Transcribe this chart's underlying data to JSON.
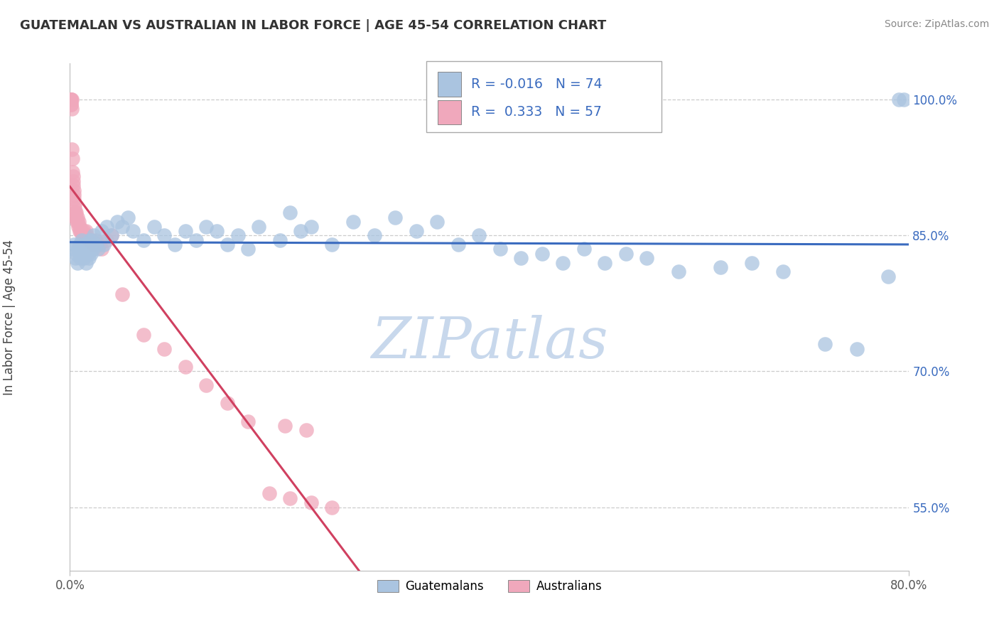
{
  "title": "GUATEMALAN VS AUSTRALIAN IN LABOR FORCE | AGE 45-54 CORRELATION CHART",
  "source": "Source: ZipAtlas.com",
  "ylabel": "In Labor Force | Age 45-54",
  "xlim": [
    0.0,
    80.0
  ],
  "ylim": [
    48.0,
    104.0
  ],
  "x_ticks": [
    0.0,
    80.0
  ],
  "x_tick_labels": [
    "0.0%",
    "80.0%"
  ],
  "y_tick_values": [
    55.0,
    70.0,
    85.0,
    100.0
  ],
  "y_tick_labels": [
    "55.0%",
    "70.0%",
    "85.0%",
    "100.0%"
  ],
  "blue_color": "#aac4e0",
  "pink_color": "#f0a8bc",
  "blue_line_color": "#3a6bbf",
  "pink_line_color": "#d04060",
  "watermark_color": "#c8d8ec",
  "background_color": "#ffffff",
  "grid_color": "#cccccc",
  "r_blue": "-0.016",
  "r_pink": "0.333",
  "n_blue": "74",
  "n_pink": "57",
  "guatemalan_x": [
    0.3,
    0.4,
    0.5,
    0.6,
    0.7,
    0.8,
    0.9,
    1.0,
    1.0,
    1.1,
    1.2,
    1.3,
    1.4,
    1.5,
    1.5,
    1.6,
    1.7,
    1.8,
    1.9,
    2.0,
    2.1,
    2.2,
    2.3,
    2.5,
    2.7,
    3.0,
    3.2,
    3.5,
    4.0,
    4.5,
    5.0,
    5.5,
    6.0,
    7.0,
    8.0,
    9.0,
    10.0,
    11.0,
    12.0,
    13.0,
    14.0,
    15.0,
    16.0,
    17.0,
    18.0,
    20.0,
    21.0,
    22.0,
    23.0,
    25.0,
    27.0,
    29.0,
    31.0,
    33.0,
    35.0,
    37.0,
    39.0,
    41.0,
    43.0,
    45.0,
    47.0,
    49.0,
    51.0,
    53.0,
    55.0,
    58.0,
    62.0,
    65.0,
    68.0,
    72.0,
    75.0,
    78.0,
    79.0,
    79.5
  ],
  "guatemalan_y": [
    83.5,
    84.0,
    82.5,
    83.0,
    82.0,
    83.5,
    84.0,
    82.5,
    83.0,
    84.5,
    83.0,
    82.5,
    84.0,
    83.5,
    82.0,
    84.0,
    83.0,
    82.5,
    84.5,
    83.0,
    84.5,
    83.5,
    85.0,
    84.0,
    83.5,
    85.5,
    84.0,
    86.0,
    85.0,
    86.5,
    86.0,
    87.0,
    85.5,
    84.5,
    86.0,
    85.0,
    84.0,
    85.5,
    84.5,
    86.0,
    85.5,
    84.0,
    85.0,
    83.5,
    86.0,
    84.5,
    87.5,
    85.5,
    86.0,
    84.0,
    86.5,
    85.0,
    87.0,
    85.5,
    86.5,
    84.0,
    85.0,
    83.5,
    82.5,
    83.0,
    82.0,
    83.5,
    82.0,
    83.0,
    82.5,
    81.0,
    81.5,
    82.0,
    81.0,
    73.0,
    72.5,
    80.5,
    100.0,
    100.0
  ],
  "australian_x": [
    0.05,
    0.08,
    0.1,
    0.12,
    0.14,
    0.16,
    0.18,
    0.2,
    0.22,
    0.25,
    0.28,
    0.3,
    0.32,
    0.35,
    0.38,
    0.4,
    0.42,
    0.45,
    0.48,
    0.5,
    0.55,
    0.6,
    0.65,
    0.7,
    0.75,
    0.8,
    0.85,
    0.9,
    0.95,
    1.0,
    1.1,
    1.2,
    1.3,
    1.4,
    1.5,
    1.6,
    1.8,
    2.0,
    2.2,
    2.5,
    2.8,
    3.0,
    3.5,
    4.0,
    5.0,
    7.0,
    9.0,
    11.0,
    13.0,
    15.0,
    17.0,
    19.0,
    21.0,
    23.0,
    25.0,
    20.5,
    22.5
  ],
  "australian_y": [
    100.0,
    100.0,
    99.5,
    100.0,
    99.5,
    100.0,
    99.0,
    94.5,
    93.5,
    92.0,
    91.5,
    91.0,
    90.5,
    90.0,
    89.5,
    89.0,
    88.5,
    88.0,
    87.5,
    87.0,
    87.5,
    87.0,
    86.5,
    87.0,
    86.5,
    86.0,
    86.5,
    86.0,
    85.5,
    85.5,
    85.5,
    85.0,
    85.5,
    85.0,
    85.5,
    85.0,
    84.5,
    84.5,
    84.0,
    84.5,
    84.0,
    83.5,
    84.5,
    85.0,
    78.5,
    74.0,
    72.5,
    70.5,
    68.5,
    66.5,
    64.5,
    56.5,
    56.0,
    55.5,
    55.0,
    64.0,
    63.5
  ]
}
